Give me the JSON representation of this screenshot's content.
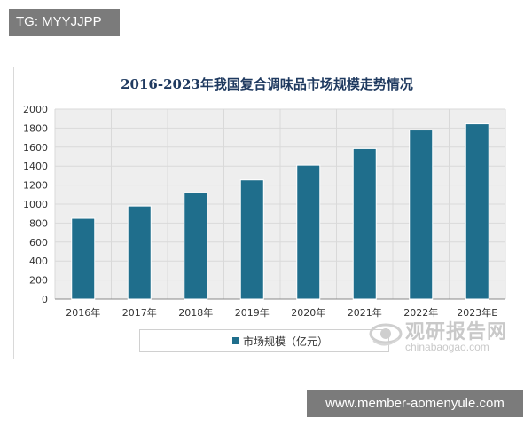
{
  "overlay": {
    "top_tag": "TG: MYYJJPP",
    "bottom_tag": "www.member-aomenyule.com"
  },
  "watermark": {
    "cn": "观研报告网",
    "en": "chinabaogao.com",
    "logo_icon": "eye-swirl-logo-icon"
  },
  "colors": {
    "bar": "#1f6e8c",
    "grid": "#d9d9d9",
    "plot_bg": "#eeeeee",
    "title": "#1f3a60"
  },
  "chart_data": {
    "type": "bar",
    "title": "2016-2023年我国复合调味品市场规模走势情况",
    "categories": [
      "2016年",
      "2017年",
      "2018年",
      "2019年",
      "2020年",
      "2021年",
      "2022年",
      "2023年E"
    ],
    "series": [
      {
        "name": "市场规模（亿元）",
        "values": [
          850,
          980,
          1120,
          1255,
          1410,
          1585,
          1780,
          1845
        ]
      }
    ],
    "y_ticks": [
      0,
      200,
      400,
      600,
      800,
      1000,
      1200,
      1400,
      1600,
      1800,
      2000
    ],
    "ylim": [
      0,
      2000
    ],
    "xlabel": "",
    "ylabel": "",
    "grid": true,
    "legend_position": "bottom"
  }
}
